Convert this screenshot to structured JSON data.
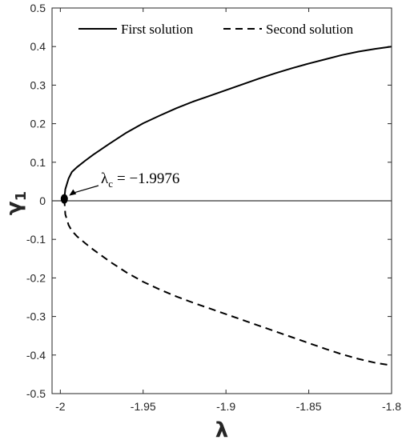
{
  "chart_data": {
    "type": "line",
    "title": "",
    "xlabel": "λ",
    "ylabel": "γ",
    "ylabel_sub": "1",
    "xlim": [
      -2.005,
      -1.8
    ],
    "ylim": [
      -0.5,
      0.5
    ],
    "xticks": [
      -2,
      -1.95,
      -1.9,
      -1.85,
      -1.8
    ],
    "xtick_labels": [
      "-2",
      "-1.95",
      "-1.9",
      "-1.85",
      "-1.8"
    ],
    "yticks": [
      -0.5,
      -0.4,
      -0.3,
      -0.2,
      -0.1,
      0,
      0.1,
      0.2,
      0.3,
      0.4,
      0.5
    ],
    "ytick_labels": [
      "-0.5",
      "-0.4",
      "-0.3",
      "-0.2",
      "-0.1",
      "0",
      "0.1",
      "0.2",
      "0.3",
      "0.4",
      "0.5"
    ],
    "grid": false,
    "legend_position": "top",
    "series": [
      {
        "name": "First solution",
        "style": "solid",
        "color": "#000000",
        "x": [
          -1.9976,
          -1.997,
          -1.995,
          -1.993,
          -1.99,
          -1.985,
          -1.98,
          -1.97,
          -1.96,
          -1.95,
          -1.94,
          -1.93,
          -1.92,
          -1.91,
          -1.9,
          -1.89,
          -1.88,
          -1.87,
          -1.86,
          -1.85,
          -1.84,
          -1.83,
          -1.82,
          -1.81,
          -1.8
        ],
        "y": [
          0.005,
          0.03,
          0.058,
          0.075,
          0.087,
          0.104,
          0.12,
          0.149,
          0.177,
          0.201,
          0.221,
          0.24,
          0.257,
          0.272,
          0.287,
          0.302,
          0.317,
          0.331,
          0.344,
          0.356,
          0.367,
          0.378,
          0.387,
          0.394,
          0.4
        ]
      },
      {
        "name": "Second solution",
        "style": "dashed",
        "color": "#000000",
        "x": [
          -1.9976,
          -1.997,
          -1.995,
          -1.993,
          -1.99,
          -1.985,
          -1.98,
          -1.97,
          -1.96,
          -1.95,
          -1.94,
          -1.93,
          -1.92,
          -1.91,
          -1.9,
          -1.89,
          -1.88,
          -1.87,
          -1.86,
          -1.85,
          -1.84,
          -1.83,
          -1.82,
          -1.81,
          -1.8
        ],
        "y": [
          0.005,
          -0.035,
          -0.063,
          -0.078,
          -0.092,
          -0.11,
          -0.127,
          -0.158,
          -0.186,
          -0.21,
          -0.23,
          -0.248,
          -0.264,
          -0.279,
          -0.294,
          -0.309,
          -0.324,
          -0.339,
          -0.354,
          -0.369,
          -0.384,
          -0.398,
          -0.41,
          -0.42,
          -0.427
        ]
      }
    ],
    "reference_line": {
      "y": 0
    },
    "critical_point": {
      "x": -1.9976,
      "y": 0.005,
      "label_symbol": "λ",
      "label_sub": "c",
      "label_value": "= −1.9976"
    },
    "colors": {
      "axis": "#262626",
      "lines": "#000000"
    }
  }
}
